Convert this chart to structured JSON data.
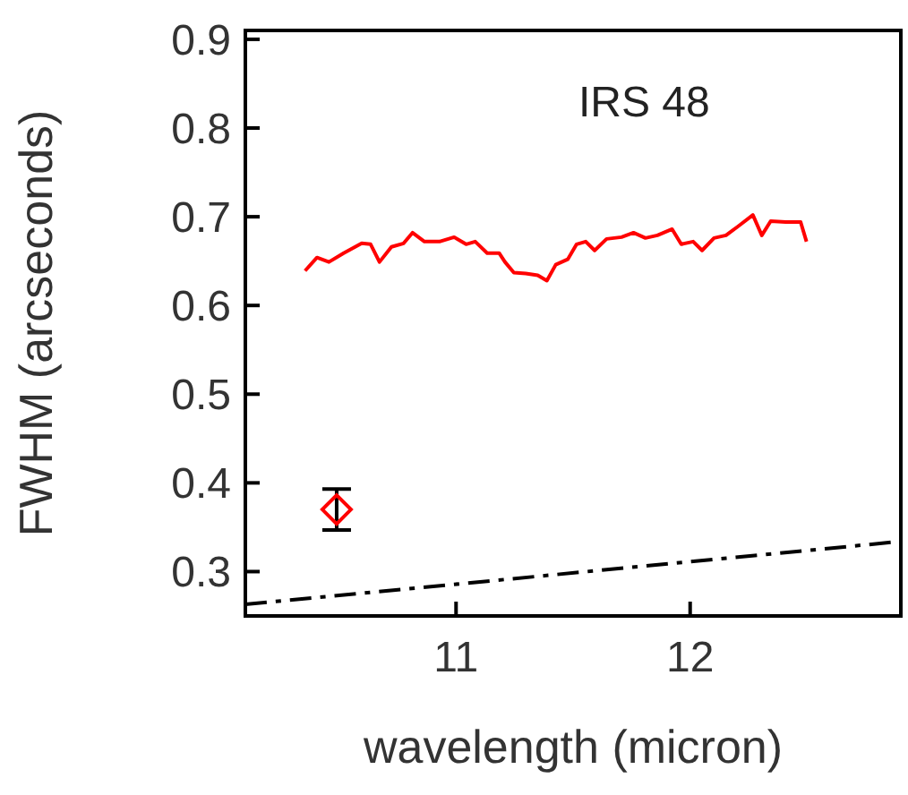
{
  "chart_data": {
    "type": "line",
    "xlabel": "wavelength (micron)",
    "ylabel": "FWHM (arcseconds)",
    "annotations": [
      "IRS 48"
    ],
    "xlim": [
      10.1,
      12.9
    ],
    "xticks": [
      11,
      12
    ],
    "ylim": [
      0.25,
      0.91
    ],
    "yticks": [
      0.3,
      0.4,
      0.5,
      0.6,
      0.7,
      0.8,
      0.9
    ],
    "grid": false,
    "legend": false,
    "series": [
      {
        "color": "#ff0000",
        "line_style": "solid",
        "marker": "none",
        "x": [
          10.355,
          10.406,
          10.457,
          10.52,
          10.597,
          10.635,
          10.673,
          10.724,
          10.776,
          10.814,
          10.865,
          10.929,
          10.992,
          11.043,
          11.082,
          11.133,
          11.184,
          11.209,
          11.247,
          11.298,
          11.349,
          11.388,
          11.426,
          11.477,
          11.515,
          11.554,
          11.592,
          11.643,
          11.707,
          11.758,
          11.809,
          11.86,
          11.923,
          11.962,
          12.013,
          12.051,
          12.102,
          12.153,
          12.204,
          12.268,
          12.306,
          12.344,
          12.408,
          12.472,
          12.497
        ],
        "values": [
          0.639,
          0.654,
          0.649,
          0.659,
          0.67,
          0.669,
          0.649,
          0.666,
          0.67,
          0.682,
          0.672,
          0.672,
          0.677,
          0.669,
          0.672,
          0.659,
          0.659,
          0.649,
          0.637,
          0.636,
          0.634,
          0.628,
          0.646,
          0.652,
          0.669,
          0.672,
          0.662,
          0.675,
          0.677,
          0.682,
          0.676,
          0.679,
          0.686,
          0.669,
          0.672,
          0.662,
          0.676,
          0.679,
          0.689,
          0.702,
          0.679,
          0.695,
          0.694,
          0.694,
          0.672
        ]
      },
      {
        "type": "scatter",
        "color": "#ff0000",
        "marker": "diamond",
        "x": [
          10.49
        ],
        "values": [
          0.37
        ],
        "errors": [
          0.023
        ]
      },
      {
        "type": "line",
        "color": "#000000",
        "line_style": "dashed",
        "marker": "none",
        "x": [
          10.1,
          12.9
        ],
        "values": [
          0.263,
          0.334
        ]
      }
    ]
  }
}
